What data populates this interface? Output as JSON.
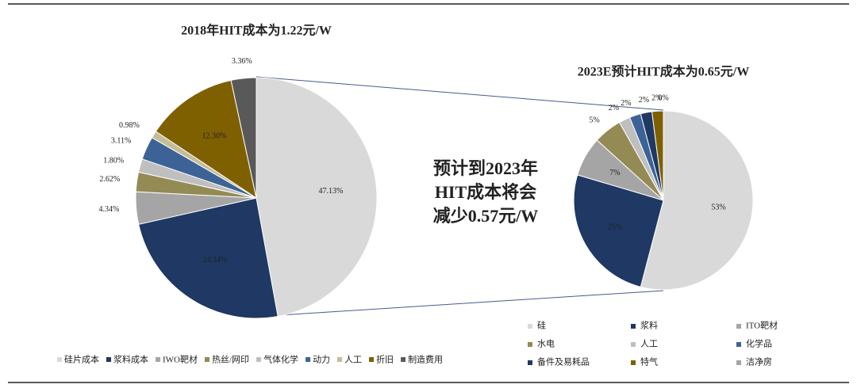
{
  "chart_data": [
    {
      "type": "pie",
      "title": "2018年HIT成本为1.22元/W",
      "categories": [
        "硅片成本",
        "浆料成本",
        "IWO靶材",
        "热丝/网印",
        "气体化学",
        "动力",
        "人工",
        "折旧",
        "制造费用"
      ],
      "values": [
        47.13,
        24.34,
        4.34,
        2.62,
        1.8,
        3.11,
        0.98,
        12.3,
        3.36
      ],
      "value_labels": [
        "47.13%",
        "24.34%",
        "4.34%",
        "2.62%",
        "1.80%",
        "3.11%",
        "0.98%",
        "12.30%",
        "3.36%"
      ],
      "colors": [
        "#d9d9d9",
        "#1f3864",
        "#a5a5a5",
        "#948a54",
        "#bfbfbf",
        "#3d6396",
        "#c4bd97",
        "#7f6000",
        "#595959"
      ],
      "annotation": [
        "预计到2023年",
        "HIT成本将会",
        "减少0.57元/W"
      ]
    },
    {
      "type": "pie",
      "title": "2023E预计HIT成本为0.65元/W",
      "categories": [
        "硅",
        "浆料",
        "ITO靶材",
        "水电",
        "人工",
        "化学品",
        "备件及易耗品",
        "特气",
        "洁净房"
      ],
      "values": [
        53,
        25,
        7,
        5,
        2,
        2,
        2,
        2,
        0
      ],
      "value_labels": [
        "53%",
        "25%",
        "7%",
        "5%",
        "2%",
        "2%",
        "2%",
        "2%",
        "0%"
      ],
      "colors": [
        "#d9d9d9",
        "#1f3864",
        "#a5a5a5",
        "#948a54",
        "#bfbfbf",
        "#3d6396",
        "#1f3864",
        "#7f6000",
        "#a5a5a5"
      ]
    }
  ]
}
